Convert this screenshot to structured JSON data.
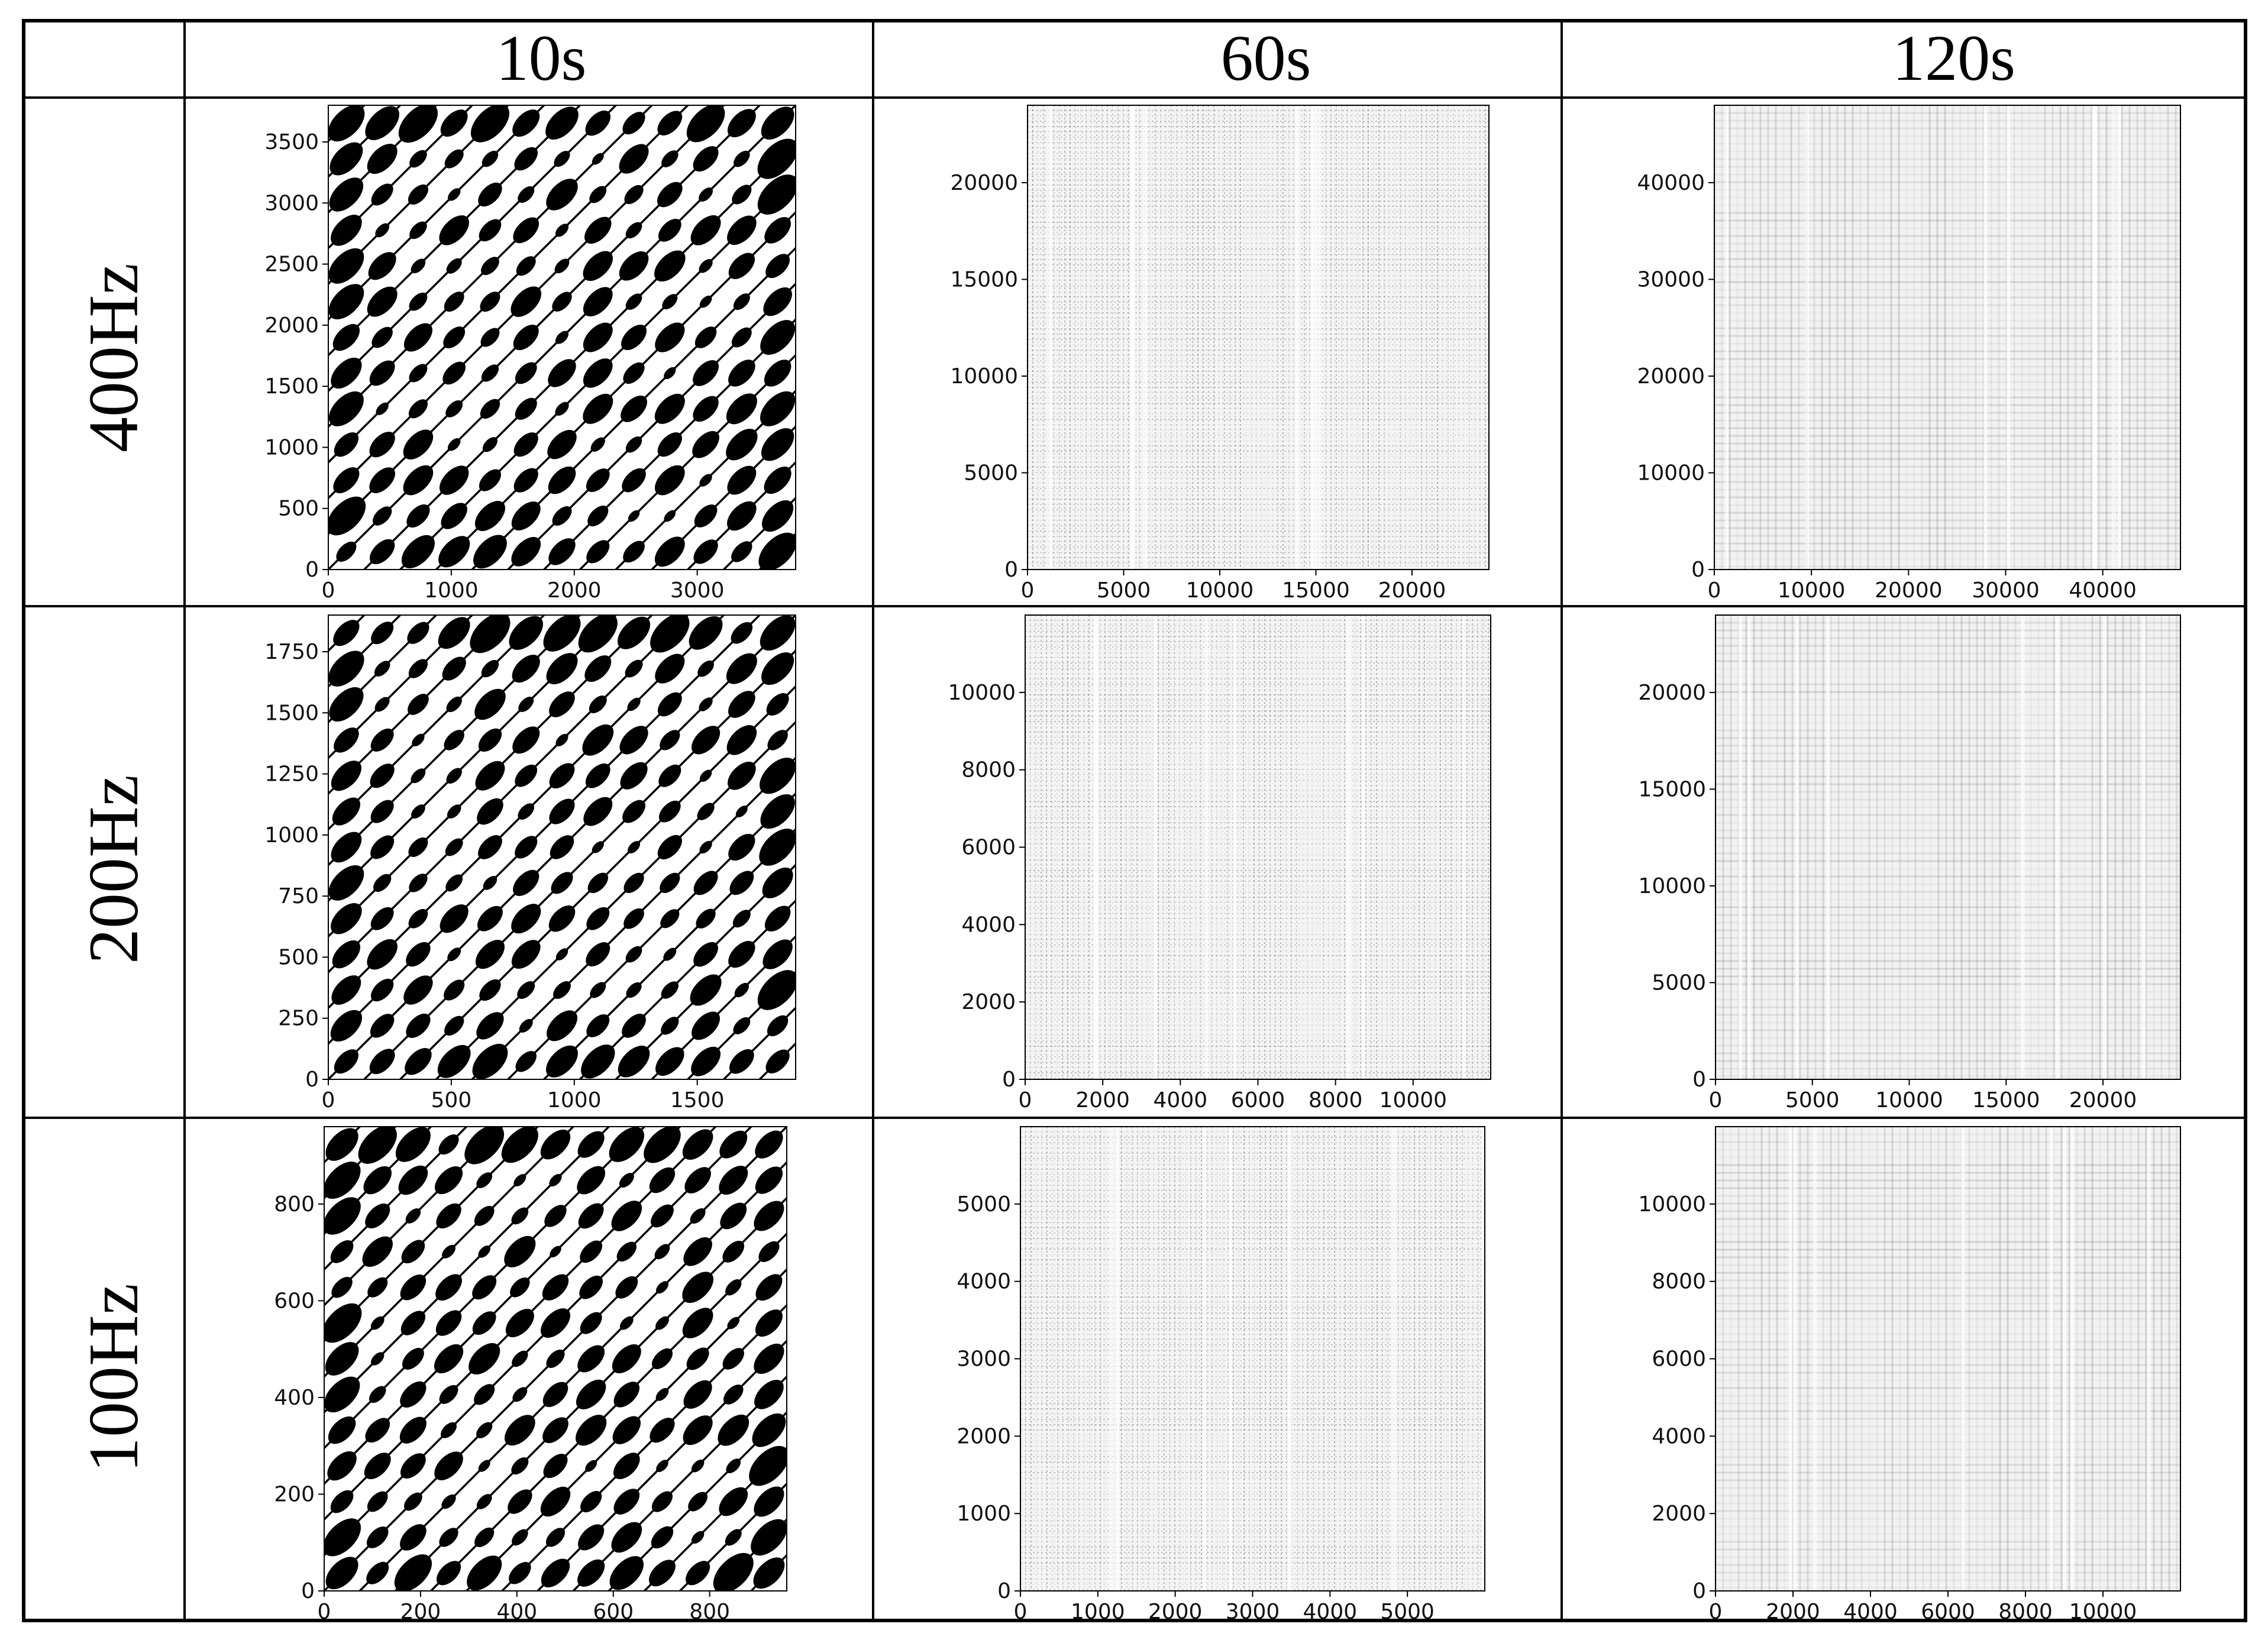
{
  "table": {
    "column_headers": [
      "10s",
      "60s",
      "120s"
    ],
    "row_headers": [
      "400Hz",
      "200Hz",
      "100Hz"
    ]
  },
  "panels": [
    {
      "id": "400hz-10s",
      "row": 0,
      "col": 0,
      "style": "sparse-diagonal",
      "max": 3800,
      "x_ticks": [
        0,
        1000,
        2000,
        3000
      ],
      "y_ticks": [
        0,
        500,
        1000,
        1500,
        2000,
        2500,
        3000,
        3500
      ]
    },
    {
      "id": "400hz-60s",
      "row": 0,
      "col": 1,
      "style": "dense",
      "max": 24000,
      "x_ticks": [
        0,
        5000,
        10000,
        15000,
        20000
      ],
      "y_ticks": [
        0,
        5000,
        10000,
        15000,
        20000
      ]
    },
    {
      "id": "400hz-120s",
      "row": 0,
      "col": 2,
      "style": "faint",
      "max": 48000,
      "x_ticks": [
        0,
        10000,
        20000,
        30000,
        40000
      ],
      "y_ticks": [
        0,
        10000,
        20000,
        30000,
        40000
      ]
    },
    {
      "id": "200hz-10s",
      "row": 1,
      "col": 0,
      "style": "sparse-diagonal",
      "max": 1900,
      "x_ticks": [
        0,
        500,
        1000,
        1500
      ],
      "y_ticks": [
        0,
        250,
        500,
        750,
        1000,
        1250,
        1500,
        1750
      ]
    },
    {
      "id": "200hz-60s",
      "row": 1,
      "col": 1,
      "style": "dense",
      "max": 12000,
      "x_ticks": [
        0,
        2000,
        4000,
        6000,
        8000,
        10000
      ],
      "y_ticks": [
        0,
        2000,
        4000,
        6000,
        8000,
        10000
      ]
    },
    {
      "id": "200hz-120s",
      "row": 1,
      "col": 2,
      "style": "faint",
      "max": 24000,
      "x_ticks": [
        0,
        5000,
        10000,
        15000,
        20000
      ],
      "y_ticks": [
        0,
        5000,
        10000,
        15000,
        20000
      ]
    },
    {
      "id": "100hz-10s",
      "row": 2,
      "col": 0,
      "style": "sparse-diagonal",
      "max": 960,
      "x_ticks": [
        0,
        200,
        400,
        600,
        800
      ],
      "y_ticks": [
        0,
        200,
        400,
        600,
        800
      ]
    },
    {
      "id": "100hz-60s",
      "row": 2,
      "col": 1,
      "style": "dense",
      "max": 6000,
      "x_ticks": [
        0,
        1000,
        2000,
        3000,
        4000,
        5000
      ],
      "y_ticks": [
        0,
        1000,
        2000,
        3000,
        4000,
        5000
      ]
    },
    {
      "id": "100hz-120s",
      "row": 2,
      "col": 2,
      "style": "faint",
      "max": 12000,
      "x_ticks": [
        0,
        2000,
        4000,
        6000,
        8000,
        10000
      ],
      "y_ticks": [
        0,
        2000,
        4000,
        6000,
        8000,
        10000
      ]
    }
  ]
}
